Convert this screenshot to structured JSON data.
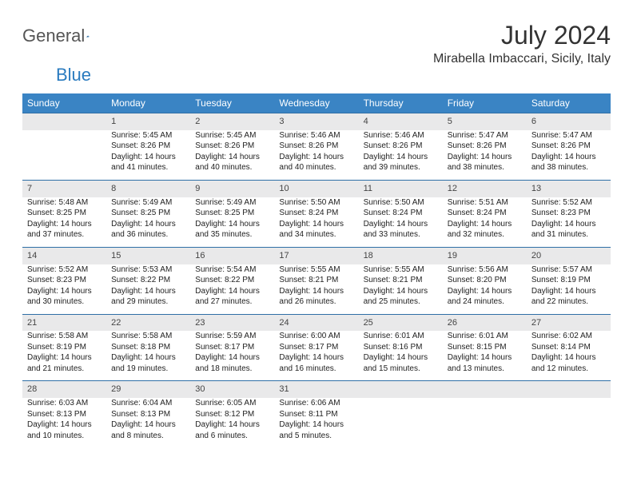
{
  "logo": {
    "general": "General",
    "blue": "Blue"
  },
  "title": "July 2024",
  "location": "Mirabella Imbaccari, Sicily, Italy",
  "weekdays": [
    "Sunday",
    "Monday",
    "Tuesday",
    "Wednesday",
    "Thursday",
    "Friday",
    "Saturday"
  ],
  "colors": {
    "header_bg": "#3a84c4",
    "header_text": "#ffffff",
    "daynum_bg": "#e9e9ea",
    "row_border": "#2f6fa6",
    "text": "#222222",
    "logo_gray": "#555555",
    "logo_blue": "#2a7bbf"
  },
  "weeks": [
    [
      null,
      {
        "n": "1",
        "sr": "5:45 AM",
        "ss": "8:26 PM",
        "dl": "14 hours and 41 minutes."
      },
      {
        "n": "2",
        "sr": "5:45 AM",
        "ss": "8:26 PM",
        "dl": "14 hours and 40 minutes."
      },
      {
        "n": "3",
        "sr": "5:46 AM",
        "ss": "8:26 PM",
        "dl": "14 hours and 40 minutes."
      },
      {
        "n": "4",
        "sr": "5:46 AM",
        "ss": "8:26 PM",
        "dl": "14 hours and 39 minutes."
      },
      {
        "n": "5",
        "sr": "5:47 AM",
        "ss": "8:26 PM",
        "dl": "14 hours and 38 minutes."
      },
      {
        "n": "6",
        "sr": "5:47 AM",
        "ss": "8:26 PM",
        "dl": "14 hours and 38 minutes."
      }
    ],
    [
      {
        "n": "7",
        "sr": "5:48 AM",
        "ss": "8:25 PM",
        "dl": "14 hours and 37 minutes."
      },
      {
        "n": "8",
        "sr": "5:49 AM",
        "ss": "8:25 PM",
        "dl": "14 hours and 36 minutes."
      },
      {
        "n": "9",
        "sr": "5:49 AM",
        "ss": "8:25 PM",
        "dl": "14 hours and 35 minutes."
      },
      {
        "n": "10",
        "sr": "5:50 AM",
        "ss": "8:24 PM",
        "dl": "14 hours and 34 minutes."
      },
      {
        "n": "11",
        "sr": "5:50 AM",
        "ss": "8:24 PM",
        "dl": "14 hours and 33 minutes."
      },
      {
        "n": "12",
        "sr": "5:51 AM",
        "ss": "8:24 PM",
        "dl": "14 hours and 32 minutes."
      },
      {
        "n": "13",
        "sr": "5:52 AM",
        "ss": "8:23 PM",
        "dl": "14 hours and 31 minutes."
      }
    ],
    [
      {
        "n": "14",
        "sr": "5:52 AM",
        "ss": "8:23 PM",
        "dl": "14 hours and 30 minutes."
      },
      {
        "n": "15",
        "sr": "5:53 AM",
        "ss": "8:22 PM",
        "dl": "14 hours and 29 minutes."
      },
      {
        "n": "16",
        "sr": "5:54 AM",
        "ss": "8:22 PM",
        "dl": "14 hours and 27 minutes."
      },
      {
        "n": "17",
        "sr": "5:55 AM",
        "ss": "8:21 PM",
        "dl": "14 hours and 26 minutes."
      },
      {
        "n": "18",
        "sr": "5:55 AM",
        "ss": "8:21 PM",
        "dl": "14 hours and 25 minutes."
      },
      {
        "n": "19",
        "sr": "5:56 AM",
        "ss": "8:20 PM",
        "dl": "14 hours and 24 minutes."
      },
      {
        "n": "20",
        "sr": "5:57 AM",
        "ss": "8:19 PM",
        "dl": "14 hours and 22 minutes."
      }
    ],
    [
      {
        "n": "21",
        "sr": "5:58 AM",
        "ss": "8:19 PM",
        "dl": "14 hours and 21 minutes."
      },
      {
        "n": "22",
        "sr": "5:58 AM",
        "ss": "8:18 PM",
        "dl": "14 hours and 19 minutes."
      },
      {
        "n": "23",
        "sr": "5:59 AM",
        "ss": "8:17 PM",
        "dl": "14 hours and 18 minutes."
      },
      {
        "n": "24",
        "sr": "6:00 AM",
        "ss": "8:17 PM",
        "dl": "14 hours and 16 minutes."
      },
      {
        "n": "25",
        "sr": "6:01 AM",
        "ss": "8:16 PM",
        "dl": "14 hours and 15 minutes."
      },
      {
        "n": "26",
        "sr": "6:01 AM",
        "ss": "8:15 PM",
        "dl": "14 hours and 13 minutes."
      },
      {
        "n": "27",
        "sr": "6:02 AM",
        "ss": "8:14 PM",
        "dl": "14 hours and 12 minutes."
      }
    ],
    [
      {
        "n": "28",
        "sr": "6:03 AM",
        "ss": "8:13 PM",
        "dl": "14 hours and 10 minutes."
      },
      {
        "n": "29",
        "sr": "6:04 AM",
        "ss": "8:13 PM",
        "dl": "14 hours and 8 minutes."
      },
      {
        "n": "30",
        "sr": "6:05 AM",
        "ss": "8:12 PM",
        "dl": "14 hours and 6 minutes."
      },
      {
        "n": "31",
        "sr": "6:06 AM",
        "ss": "8:11 PM",
        "dl": "14 hours and 5 minutes."
      },
      null,
      null,
      null
    ]
  ],
  "labels": {
    "sunrise": "Sunrise: ",
    "sunset": "Sunset: ",
    "daylight": "Daylight: "
  }
}
